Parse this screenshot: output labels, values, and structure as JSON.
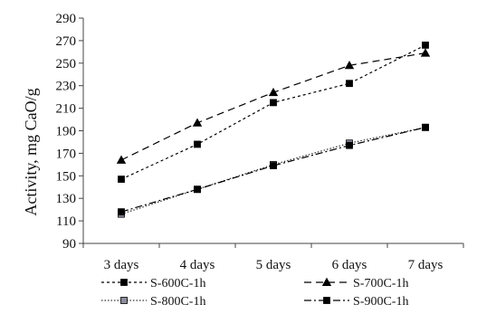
{
  "chart_data": {
    "type": "line",
    "title": "",
    "xlabel": "",
    "ylabel": "Activity, mg CaO/g",
    "categories": [
      "3 days",
      "4 days",
      "5 days",
      "6 days",
      "7 days"
    ],
    "ylim": [
      90,
      290
    ],
    "yticks": [
      90,
      110,
      130,
      150,
      170,
      190,
      210,
      230,
      250,
      270,
      290
    ],
    "grid": false,
    "legend_position": "bottom",
    "series": [
      {
        "name": "S-600C-1h",
        "values": [
          147,
          178,
          215,
          232,
          266
        ],
        "marker": "square",
        "dash": "short-dash",
        "color": "#000000",
        "marker_fill": "#000000"
      },
      {
        "name": "S-700C-1h",
        "values": [
          164,
          197,
          224,
          248,
          259
        ],
        "marker": "triangle",
        "dash": "long-dash",
        "color": "#000000",
        "marker_fill": "#000000"
      },
      {
        "name": "S-800C-1h",
        "values": [
          116,
          138,
          160,
          179,
          193
        ],
        "marker": "square",
        "dash": "dotted",
        "color": "#333333",
        "marker_fill": "#8c8c9c"
      },
      {
        "name": "S-900C-1h",
        "values": [
          118,
          138,
          159,
          177,
          193
        ],
        "marker": "square",
        "dash": "dash-dot",
        "color": "#000000",
        "marker_fill": "#000000"
      }
    ]
  }
}
